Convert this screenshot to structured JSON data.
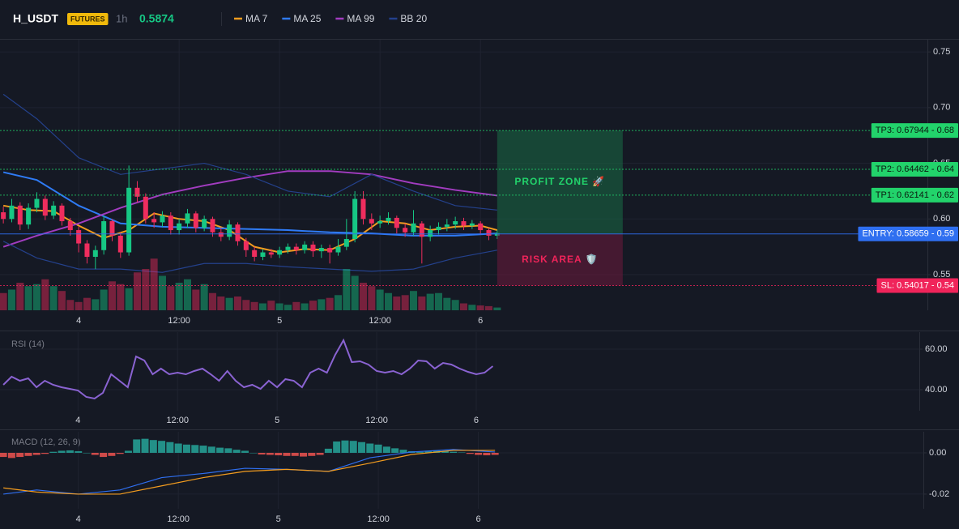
{
  "header": {
    "symbol": "H_USDT",
    "badge": "FUTURES",
    "interval": "1h",
    "price": "0.5874"
  },
  "chart_data": [
    {
      "type": "candlestick",
      "x": [
        -9,
        -8,
        -7,
        -6,
        -5,
        -4,
        -3,
        -2,
        -1,
        0,
        1,
        2,
        3,
        4,
        5,
        6,
        7,
        8,
        9,
        10,
        11,
        12,
        13,
        14,
        15,
        16,
        17,
        18,
        19,
        20,
        21,
        22,
        23,
        24,
        25,
        26,
        27,
        28,
        29,
        30,
        31,
        32,
        33,
        34,
        35,
        36,
        37,
        38,
        39,
        40,
        41,
        42,
        43,
        44,
        45,
        46,
        47,
        48,
        49,
        50
      ],
      "open": [
        0.606,
        0.6,
        0.612,
        0.595,
        0.61,
        0.618,
        0.603,
        0.612,
        0.598,
        0.59,
        0.578,
        0.566,
        0.572,
        0.598,
        0.585,
        0.57,
        0.628,
        0.62,
        0.6,
        0.597,
        0.603,
        0.59,
        0.596,
        0.605,
        0.592,
        0.6,
        0.588,
        0.584,
        0.595,
        0.58,
        0.572,
        0.566,
        0.57,
        0.568,
        0.572,
        0.575,
        0.572,
        0.577,
        0.571,
        0.574,
        0.57,
        0.575,
        0.582,
        0.618,
        0.6,
        0.596,
        0.598,
        0.601,
        0.592,
        0.588,
        0.596,
        0.584,
        0.59,
        0.593,
        0.595,
        0.598,
        0.594,
        0.596,
        0.59,
        0.585
      ],
      "high": [
        0.611,
        0.618,
        0.615,
        0.614,
        0.624,
        0.621,
        0.616,
        0.614,
        0.601,
        0.593,
        0.581,
        0.576,
        0.603,
        0.6,
        0.588,
        0.648,
        0.634,
        0.623,
        0.606,
        0.607,
        0.606,
        0.6,
        0.609,
        0.607,
        0.603,
        0.602,
        0.592,
        0.599,
        0.597,
        0.583,
        0.575,
        0.573,
        0.573,
        0.575,
        0.578,
        0.578,
        0.58,
        0.58,
        0.577,
        0.577,
        0.582,
        0.6,
        0.625,
        0.625,
        0.605,
        0.603,
        0.606,
        0.603,
        0.596,
        0.608,
        0.598,
        0.594,
        0.597,
        0.6,
        0.602,
        0.601,
        0.599,
        0.598,
        0.592,
        0.59
      ],
      "low": [
        0.596,
        0.597,
        0.59,
        0.591,
        0.606,
        0.599,
        0.6,
        0.594,
        0.585,
        0.57,
        0.56,
        0.555,
        0.568,
        0.58,
        0.565,
        0.567,
        0.615,
        0.596,
        0.592,
        0.593,
        0.586,
        0.586,
        0.592,
        0.588,
        0.589,
        0.584,
        0.58,
        0.581,
        0.576,
        0.566,
        0.562,
        0.563,
        0.565,
        0.565,
        0.569,
        0.568,
        0.569,
        0.566,
        0.565,
        0.56,
        0.567,
        0.572,
        0.579,
        0.595,
        0.59,
        0.592,
        0.595,
        0.587,
        0.584,
        0.585,
        0.56,
        0.58,
        0.586,
        0.589,
        0.591,
        0.59,
        0.591,
        0.586,
        0.581,
        0.582
      ],
      "close": [
        0.6,
        0.612,
        0.595,
        0.61,
        0.618,
        0.603,
        0.612,
        0.598,
        0.59,
        0.578,
        0.566,
        0.572,
        0.598,
        0.585,
        0.57,
        0.628,
        0.62,
        0.6,
        0.597,
        0.603,
        0.59,
        0.596,
        0.605,
        0.592,
        0.6,
        0.588,
        0.584,
        0.595,
        0.58,
        0.572,
        0.566,
        0.57,
        0.568,
        0.572,
        0.575,
        0.572,
        0.577,
        0.571,
        0.574,
        0.57,
        0.575,
        0.582,
        0.618,
        0.6,
        0.596,
        0.598,
        0.601,
        0.592,
        0.588,
        0.596,
        0.584,
        0.59,
        0.593,
        0.595,
        0.598,
        0.594,
        0.596,
        0.59,
        0.585,
        0.5874
      ],
      "up_color": "#16c784",
      "down_color": "#ef2d5e",
      "volume": [
        25,
        30,
        40,
        35,
        38,
        45,
        35,
        28,
        15,
        12,
        18,
        16,
        30,
        42,
        38,
        32,
        55,
        60,
        75,
        50,
        35,
        40,
        45,
        30,
        38,
        25,
        20,
        18,
        20,
        15,
        12,
        10,
        14,
        10,
        8,
        12,
        10,
        14,
        16,
        18,
        22,
        60,
        50,
        40,
        35,
        30,
        25,
        20,
        22,
        28,
        20,
        24,
        25,
        18,
        15,
        10,
        8,
        7,
        6,
        4
      ],
      "volume_lim": [
        0,
        100
      ],
      "series": [
        {
          "name": "MA 7",
          "color": "#f39c1f",
          "x": [
            -9,
            -6,
            -3,
            0,
            3,
            6,
            9,
            12,
            15,
            18,
            21,
            24,
            27,
            30,
            33,
            36,
            39,
            42,
            45,
            48,
            50
          ],
          "values": [
            0.612,
            0.608,
            0.607,
            0.594,
            0.583,
            0.59,
            0.605,
            0.6,
            0.598,
            0.59,
            0.575,
            0.57,
            0.573,
            0.572,
            0.582,
            0.598,
            0.596,
            0.59,
            0.593,
            0.594,
            0.59
          ]
        },
        {
          "name": "MA 25",
          "color": "#2f7bf5",
          "x": [
            -9,
            -5,
            0,
            5,
            10,
            15,
            20,
            25,
            30,
            35,
            40,
            45,
            50
          ],
          "values": [
            0.642,
            0.635,
            0.612,
            0.596,
            0.593,
            0.592,
            0.591,
            0.59,
            0.588,
            0.587,
            0.585,
            0.585,
            0.587
          ]
        },
        {
          "name": "MA 99",
          "color": "#a23cc0",
          "x": [
            -9,
            -5,
            0,
            5,
            10,
            15,
            20,
            25,
            30,
            35,
            40,
            45,
            50
          ],
          "values": [
            0.575,
            0.585,
            0.596,
            0.61,
            0.622,
            0.63,
            0.637,
            0.643,
            0.643,
            0.64,
            0.632,
            0.626,
            0.621
          ]
        },
        {
          "name": "BB 20",
          "color": "#24418c",
          "x": [
            -9,
            -5,
            0,
            5,
            10,
            15,
            20,
            25,
            30,
            35,
            40,
            45,
            50
          ],
          "values": [
            0.712,
            0.69,
            0.655,
            0.64,
            0.645,
            0.65,
            0.64,
            0.625,
            0.62,
            0.64,
            0.625,
            0.612,
            0.608
          ],
          "lower": [
            0.58,
            0.565,
            0.555,
            0.555,
            0.552,
            0.56,
            0.56,
            0.557,
            0.555,
            0.553,
            0.555,
            0.565,
            0.572
          ]
        }
      ],
      "levels": [
        {
          "label": "TP3: 0.67944 - 0.68",
          "value": 0.67944,
          "color": "#22d36b",
          "text_color": "#0b1a10",
          "style": "dotted"
        },
        {
          "label": "TP2: 0.64462 - 0.64",
          "value": 0.64462,
          "color": "#22d36b",
          "text_color": "#0b1a10",
          "style": "dotted"
        },
        {
          "label": "TP1: 0.62141 - 0.62",
          "value": 0.62141,
          "color": "#22d36b",
          "text_color": "#0b1a10",
          "style": "dotted"
        },
        {
          "label": "ENTRY: 0.58659 - 0.59",
          "value": 0.58659,
          "color": "#2f6ff0",
          "text_color": "#ffffff",
          "style": "solid"
        },
        {
          "label": "SL: 0.54017 - 0.54",
          "value": 0.54017,
          "color": "#f0245a",
          "text_color": "#ffffff",
          "style": "dotted"
        }
      ],
      "zones": [
        {
          "label": "PROFIT ZONE 🚀",
          "xlim": [
            50,
            65
          ],
          "ylim": [
            0.58659,
            0.67944
          ],
          "color": "#1a6b45",
          "text_color": "#22d36b"
        },
        {
          "label": "RISK AREA 🛡️",
          "xlim": [
            50,
            65
          ],
          "ylim": [
            0.54017,
            0.58659
          ],
          "color": "#6e1a3c",
          "text_color": "#f0245a"
        }
      ],
      "xlim": [
        -9.4,
        101.4
      ],
      "ylim": [
        0.518,
        0.761
      ],
      "xticks": [
        {
          "value": 0,
          "label": "4"
        },
        {
          "value": 12,
          "label": "12:00"
        },
        {
          "value": 24,
          "label": "5"
        },
        {
          "value": 36,
          "label": "12:00"
        },
        {
          "value": 48,
          "label": "6"
        }
      ],
      "yticks": [
        {
          "value": 0.75,
          "label": "0.75"
        },
        {
          "value": 0.7,
          "label": "0.70"
        },
        {
          "value": 0.65,
          "label": "0.65"
        },
        {
          "value": 0.6,
          "label": "0.60"
        },
        {
          "value": 0.55,
          "label": "0.55"
        }
      ],
      "grid": true
    },
    {
      "type": "line",
      "title": "RSI (14)",
      "color": "#8a63d2",
      "x": [
        -9,
        -8,
        -7,
        -6,
        -5,
        -4,
        -3,
        -2,
        -1,
        0,
        1,
        2,
        3,
        4,
        5,
        6,
        7,
        8,
        9,
        10,
        11,
        12,
        13,
        14,
        15,
        16,
        17,
        18,
        19,
        20,
        21,
        22,
        23,
        24,
        25,
        26,
        27,
        28,
        29,
        30,
        31,
        32,
        33,
        34,
        35,
        36,
        37,
        38,
        39,
        40,
        41,
        42,
        43,
        44,
        45,
        46,
        47,
        48,
        49,
        50
      ],
      "values": [
        42.4,
        46.4,
        44.4,
        45.6,
        41.2,
        44.4,
        42.4,
        41.2,
        40.4,
        39.6,
        36.4,
        35.6,
        38.4,
        47.6,
        44.4,
        41.2,
        56.4,
        54.4,
        47.6,
        50.4,
        47.6,
        48.4,
        47.6,
        49.2,
        50.4,
        47.6,
        44.4,
        49.2,
        44.4,
        41.2,
        42.4,
        40.4,
        44.4,
        41.2,
        45.2,
        44.4,
        41.2,
        48.4,
        50.4,
        48.4,
        57.2,
        64.4,
        53.6,
        54,
        52.4,
        49.2,
        48.4,
        49.2,
        47.6,
        50.4,
        54.4,
        54,
        50.4,
        53.2,
        52.4,
        50.4,
        48.8,
        47.6,
        48.4,
        51.6
      ],
      "xlim": [
        -9.4,
        101.4
      ],
      "ylim": [
        29.6,
        68.4
      ],
      "xticks": [
        {
          "value": 0,
          "label": "4"
        },
        {
          "value": 12,
          "label": "12:00"
        },
        {
          "value": 24,
          "label": "5"
        },
        {
          "value": 36,
          "label": "12:00"
        },
        {
          "value": 48,
          "label": "6"
        }
      ],
      "yticks": [
        {
          "value": 60,
          "label": "60.00"
        },
        {
          "value": 40,
          "label": "40.00"
        }
      ],
      "grid": true
    },
    {
      "type": "macd",
      "title": "MACD (12, 26, 9)",
      "x": [
        -9,
        -8,
        -7,
        -6,
        -5,
        -4,
        -3,
        -2,
        -1,
        0,
        1,
        2,
        3,
        4,
        5,
        6,
        7,
        8,
        9,
        10,
        11,
        12,
        13,
        14,
        15,
        16,
        17,
        18,
        19,
        20,
        21,
        22,
        23,
        24,
        25,
        26,
        27,
        28,
        29,
        30,
        31,
        32,
        33,
        34,
        35,
        36,
        37,
        38,
        39,
        40,
        41,
        42,
        43,
        44,
        45,
        46,
        47,
        48,
        49,
        50
      ],
      "values": [
        -0.002,
        -0.0025,
        -0.002,
        -0.0015,
        -0.001,
        -0.0005,
        0.0005,
        0.001,
        0.0012,
        0.0008,
        0,
        -0.001,
        -0.002,
        -0.0015,
        -0.0005,
        0.001,
        0.0065,
        0.0068,
        0.0062,
        0.0058,
        0.0052,
        0.0045,
        0.004,
        0.0038,
        0.0035,
        0.003,
        0.0025,
        0.0022,
        0.0015,
        0.001,
        0,
        -0.0008,
        -0.001,
        -0.0012,
        -0.0015,
        -0.0015,
        -0.0018,
        -0.0015,
        -0.001,
        0.002,
        0.0055,
        0.006,
        0.0058,
        0.0052,
        0.0045,
        0.004,
        0.003,
        0.0022,
        0.0015,
        0.0008,
        0.0005,
        0.001,
        0.0012,
        0.0008,
        0.0005,
        0.0002,
        -0.0005,
        -0.001,
        -0.0012,
        -0.001
      ],
      "up_color": "#26a69a",
      "down_color": "#ef5350",
      "series": [
        {
          "color": "#2f6ff0",
          "x": [
            -9,
            -5,
            0,
            5,
            10,
            15,
            20,
            25,
            30,
            35,
            40,
            45,
            50
          ],
          "values": [
            -0.02,
            -0.018,
            -0.02,
            -0.018,
            -0.012,
            -0.01,
            -0.0075,
            -0.008,
            -0.009,
            -0.0024,
            0.0004,
            0.0016,
            0.0004
          ]
        },
        {
          "color": "#f39c1f",
          "x": [
            -9,
            -5,
            0,
            5,
            10,
            15,
            20,
            25,
            30,
            35,
            40,
            45,
            50
          ],
          "values": [
            -0.017,
            -0.019,
            -0.02,
            -0.02,
            -0.016,
            -0.012,
            -0.009,
            -0.008,
            -0.009,
            -0.005,
            -0.0008,
            0.0012,
            0.0012
          ]
        }
      ],
      "xlim": [
        -9.4,
        101.4
      ],
      "ylim": [
        -0.0271,
        0.0102
      ],
      "xticks": [
        {
          "value": 0,
          "label": "4"
        },
        {
          "value": 12,
          "label": "12:00"
        },
        {
          "value": 24,
          "label": "5"
        },
        {
          "value": 36,
          "label": "12:00"
        },
        {
          "value": 48,
          "label": "6"
        }
      ],
      "yticks": [
        {
          "value": 0,
          "label": "0.00"
        },
        {
          "value": -0.02,
          "label": "-0.02"
        }
      ],
      "grid": true
    }
  ]
}
